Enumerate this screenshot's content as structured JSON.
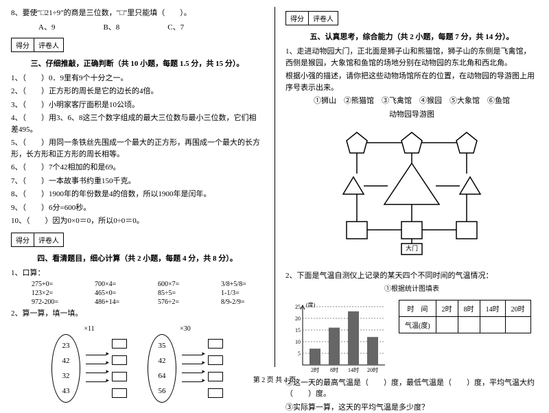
{
  "left": {
    "q8": "8、要使\"□21÷9\"的商是三位数，\"□\"里只能填（　　）。",
    "q8a": "A、9",
    "q8b": "B、8",
    "q8c": "C、7",
    "score1": "得分",
    "score2": "评卷人",
    "section3": "三、仔细推敲，正确判断（共 10 小题，每题 1.5 分，共 15 分）。",
    "j1": "1、（　　）0．9里有9个十分之一。",
    "j2": "2、（　　）正方形的周长是它的边长的4倍。",
    "j3": "3、（　　）小明家客厅面积是10公顷。",
    "j4": "4、（　　）用3、6、8这三个数字组成的最大三位数与最小三位数，它们相差495。",
    "j5": "5、（　　）用同一条铁丝先围成一个最大的正方形，再围成一个最大的长方形，长方形和正方形的周长相等。",
    "j6": "6、（　　）7个42相加的和是69。",
    "j7": "7、（　　）一本故事书约重150千克。",
    "j8": "8、（　　）1900年的年份数是4的倍数，所以1900年是闰年。",
    "j9": "9、（　　）6分=600秒。",
    "j10": "10、（　　）因为0×0＝0，所以0÷0＝0。",
    "section4": "四、看清题目，细心计算（共 2 小题，每题 4 分，共 8 分）。",
    "calc_label": "1、口算：",
    "calc": [
      [
        "275+0=",
        "700×4=",
        "600×7=",
        "3/8+5/8="
      ],
      [
        "123×2=",
        "465×0=",
        "85÷5=",
        "1-1/3="
      ],
      [
        "972-200=",
        "486+14=",
        "576÷2=",
        "8/9-2/9="
      ]
    ],
    "calc2_label": "2、算一算，填一填。",
    "set1_label": "×11",
    "set1": [
      "23",
      "42",
      "32",
      "43"
    ],
    "set2_label": "×30",
    "set2": [
      "35",
      "42",
      "64",
      "56"
    ]
  },
  "right": {
    "score1": "得分",
    "score2": "评卷人",
    "section5": "五、认真思考，综合能力（共 2 小题，每题 7 分，共 14 分）。",
    "q1a": "1、走进动物园大门，正北面是狮子山和熊猫馆，狮子山的东侧是飞禽馆，西侧是猴园，大象馆和鱼馆的场地分别在动物园的东北角和西北角。",
    "q1b": "根据小强的描述，请你把这些动物场馆所在的位置，在动物园的导游图上用序号表示出来。",
    "legend": "①狮山　②熊猫馆　③飞禽馆　④猴园　⑤大象馆　⑥鱼馆",
    "map_title": "动物园导游图",
    "gate": "大门",
    "q2": "2、下面是气温自测仪上记录的某天四个不同时间的气温情况：",
    "chart_sub": "①根据统计图填表",
    "y_label": "(度)",
    "y_ticks": [
      "25",
      "20",
      "15",
      "10",
      "5"
    ],
    "x_ticks": [
      "2时",
      "8时",
      "14时",
      "20时"
    ],
    "bars": {
      "values": [
        7,
        16,
        23,
        12
      ],
      "max": 25,
      "bar_color": "#666666",
      "grid_color": "#888888"
    },
    "table_h1": "时　间",
    "table_h2": "气温(度)",
    "times": [
      "2时",
      "8时",
      "14时",
      "20时"
    ],
    "q2b": "②这一天的最高气温是（　　）度，最低气温是（　　）度，平均气温大约（　　）度。",
    "q2c": "③实际算一算，这天的平均气温是多少度？"
  },
  "footer": "第 2 页 共 4 页"
}
